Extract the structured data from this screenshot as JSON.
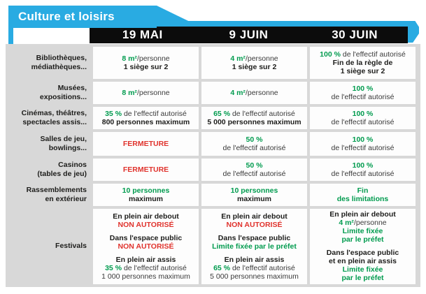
{
  "title": "Culture et loisirs",
  "columns": [
    "19 MAI",
    "9 JUIN",
    "30 JUIN"
  ],
  "colors": {
    "accent_blue": "#29abe2",
    "header_black": "#0c0c0c",
    "table_gray": "#d8d8d8",
    "green": "#009b4e",
    "red": "#e0332d"
  },
  "rows": [
    {
      "label": [
        "Bibliothèques,",
        "médiathèques..."
      ],
      "cells": [
        [
          [
            {
              "t": "8 m²",
              "s": "green"
            },
            {
              "t": "/personne",
              "s": "plain"
            }
          ],
          [
            {
              "t": "1 siège sur 2",
              "s": "bold"
            }
          ]
        ],
        [
          [
            {
              "t": "4 m²",
              "s": "green"
            },
            {
              "t": "/personne",
              "s": "plain"
            }
          ],
          [
            {
              "t": "1 siège sur 2",
              "s": "bold"
            }
          ]
        ],
        [
          [
            {
              "t": "100 %",
              "s": "green"
            },
            {
              "t": " de l'effectif autorisé",
              "s": "plain"
            }
          ],
          [
            {
              "t": "Fin de la règle de",
              "s": "bold"
            }
          ],
          [
            {
              "t": "1 siège sur 2",
              "s": "bold"
            }
          ]
        ]
      ]
    },
    {
      "label": [
        "Musées,",
        "expositions..."
      ],
      "cells": [
        [
          [
            {
              "t": "8 m²",
              "s": "green"
            },
            {
              "t": "/personne",
              "s": "plain"
            }
          ]
        ],
        [
          [
            {
              "t": "4 m²",
              "s": "green"
            },
            {
              "t": "/personne",
              "s": "plain"
            }
          ]
        ],
        [
          [
            {
              "t": "100 %",
              "s": "green"
            }
          ],
          [
            {
              "t": "de l'effectif autorisé",
              "s": "plain"
            }
          ]
        ]
      ]
    },
    {
      "label": [
        "Cinémas, théâtres,",
        "spectacles assis..."
      ],
      "cells": [
        [
          [
            {
              "t": "35 %",
              "s": "green"
            },
            {
              "t": " de l'effectif autorisé",
              "s": "plain"
            }
          ],
          [
            {
              "t": "800 personnes maximum",
              "s": "bold"
            }
          ]
        ],
        [
          [
            {
              "t": "65 %",
              "s": "green"
            },
            {
              "t": " de l'effectif autorisé",
              "s": "plain"
            }
          ],
          [
            {
              "t": "5 000 personnes maximum",
              "s": "bold"
            }
          ]
        ],
        [
          [
            {
              "t": "100 %",
              "s": "green"
            }
          ],
          [
            {
              "t": "de l'effectif autorisé",
              "s": "plain"
            }
          ]
        ]
      ]
    },
    {
      "label": [
        "Salles de jeu,",
        "bowlings..."
      ],
      "cells": [
        [
          [
            {
              "t": "FERMETURE",
              "s": "red"
            }
          ]
        ],
        [
          [
            {
              "t": "50 %",
              "s": "green"
            }
          ],
          [
            {
              "t": "de l'effectif autorisé",
              "s": "plain"
            }
          ]
        ],
        [
          [
            {
              "t": "100 %",
              "s": "green"
            }
          ],
          [
            {
              "t": "de l'effectif autorisé",
              "s": "plain"
            }
          ]
        ]
      ]
    },
    {
      "label": [
        "Casinos",
        "(tables de jeu)"
      ],
      "cells": [
        [
          [
            {
              "t": "FERMETURE",
              "s": "red"
            }
          ]
        ],
        [
          [
            {
              "t": "50 %",
              "s": "green"
            }
          ],
          [
            {
              "t": "de l'effectif autorisé",
              "s": "plain"
            }
          ]
        ],
        [
          [
            {
              "t": "100 %",
              "s": "green"
            }
          ],
          [
            {
              "t": "de l'effectif autorisé",
              "s": "plain"
            }
          ]
        ]
      ]
    },
    {
      "label": [
        "Rassemblements",
        "en extérieur"
      ],
      "cells": [
        [
          [
            {
              "t": "10 personnes",
              "s": "green"
            }
          ],
          [
            {
              "t": "maximum",
              "s": "bold"
            }
          ]
        ],
        [
          [
            {
              "t": "10 personnes",
              "s": "green"
            }
          ],
          [
            {
              "t": "maximum",
              "s": "bold"
            }
          ]
        ],
        [
          [
            {
              "t": "Fin",
              "s": "green"
            }
          ],
          [
            {
              "t": "des limitations",
              "s": "green"
            }
          ]
        ]
      ]
    },
    {
      "label": [
        "Festivals"
      ],
      "cells": [
        [
          [
            {
              "t": "En plein air debout",
              "s": "bold"
            }
          ],
          [
            {
              "t": "NON AUTORISÉ",
              "s": "red"
            }
          ],
          [],
          [
            {
              "t": "Dans l'espace public",
              "s": "bold"
            }
          ],
          [
            {
              "t": "NON AUTORISÉ",
              "s": "red"
            }
          ],
          [],
          [
            {
              "t": "En plein air assis",
              "s": "bold"
            }
          ],
          [
            {
              "t": "35 %",
              "s": "green"
            },
            {
              "t": " de l'effectif autorisé",
              "s": "plain"
            }
          ],
          [
            {
              "t": "1 000 personnes maximum",
              "s": "plain"
            }
          ]
        ],
        [
          [
            {
              "t": "En plein air debout",
              "s": "bold"
            }
          ],
          [
            {
              "t": "NON AUTORISÉ",
              "s": "red"
            }
          ],
          [],
          [
            {
              "t": "Dans l'espace public",
              "s": "bold"
            }
          ],
          [
            {
              "t": "Limite fixée par le préfet",
              "s": "green"
            }
          ],
          [],
          [
            {
              "t": "En plein air assis",
              "s": "bold"
            }
          ],
          [
            {
              "t": "65 %",
              "s": "green"
            },
            {
              "t": " de l'effectif autorisé",
              "s": "plain"
            }
          ],
          [
            {
              "t": "5 000 personnes maximum",
              "s": "plain"
            }
          ]
        ],
        [
          [
            {
              "t": "En plein air debout",
              "s": "bold"
            }
          ],
          [
            {
              "t": "4 m²",
              "s": "green"
            },
            {
              "t": "/personne",
              "s": "plain"
            }
          ],
          [
            {
              "t": "Limite fixée",
              "s": "green"
            }
          ],
          [
            {
              "t": "par le préfet",
              "s": "green"
            }
          ],
          [],
          [
            {
              "t": "Dans l'espace public",
              "s": "bold"
            }
          ],
          [
            {
              "t": "et en plein air assis",
              "s": "bold"
            }
          ],
          [
            {
              "t": "Limite fixée",
              "s": "green"
            }
          ],
          [
            {
              "t": "par le préfet",
              "s": "green"
            }
          ]
        ]
      ]
    }
  ]
}
